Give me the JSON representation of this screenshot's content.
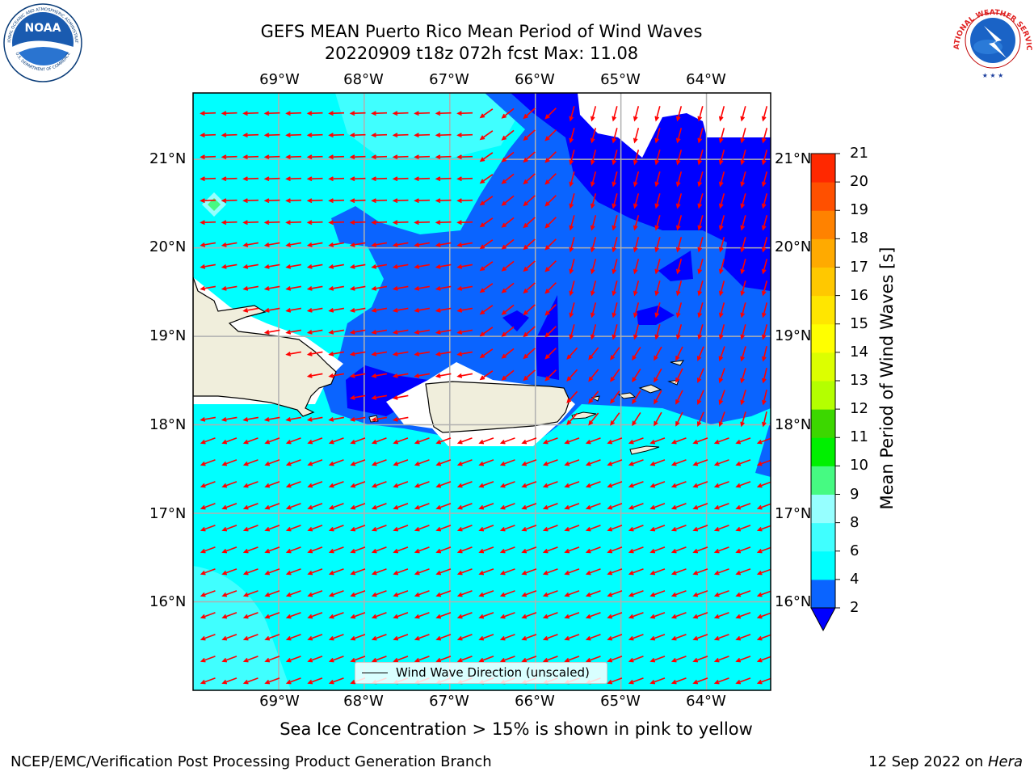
{
  "header": {
    "title_line1": "GEFS MEAN Puerto Rico Mean Period of Wind Waves",
    "title_line2": "20220909 t18z 072h fcst   Max: 11.08"
  },
  "logos": {
    "noaa": {
      "text": "NOAA",
      "ring_top": "NATIONAL OCEANIC AND ATMOSPHERIC ADMINISTRATION",
      "ring_bottom": "U.S. DEPARTMENT OF COMMERCE"
    },
    "nws": {
      "ring_text": "NATIONAL WEATHER SERVICE"
    }
  },
  "map": {
    "lon_labels": [
      "69°W",
      "68°W",
      "67°W",
      "66°W",
      "65°W",
      "64°W"
    ],
    "lat_labels": [
      "21°N",
      "20°N",
      "19°N",
      "18°N",
      "17°N",
      "16°N"
    ],
    "lon_values": [
      -69,
      -68,
      -67,
      -66,
      -65,
      -64
    ],
    "lat_values": [
      21,
      20,
      19,
      18,
      17,
      16
    ],
    "extent": {
      "lon_min": -70,
      "lon_max": -63.25,
      "lat_min": 15.0,
      "lat_max": 21.75
    },
    "legend_label": "Wind Wave Direction (unscaled)",
    "arrow_color": "#ff0000",
    "land_color": "#f0eedc",
    "gridline_color": "#b0b0b0"
  },
  "colorbar": {
    "title": "Mean Period of Wind Waves [s]",
    "levels": [
      2,
      4,
      6,
      8,
      9,
      10,
      11,
      12,
      13,
      14,
      15,
      16,
      17,
      18,
      19,
      20,
      21
    ],
    "tick_labels": [
      "2",
      "4",
      "6",
      "8",
      "9",
      "10",
      "11",
      "12",
      "13",
      "14",
      "15",
      "16",
      "17",
      "18",
      "19",
      "20",
      "21"
    ],
    "colors": [
      "#0a64ff",
      "#00ffff",
      "#40ffff",
      "#96ffff",
      "#46fa82",
      "#00f000",
      "#3cd700",
      "#b4ff00",
      "#dcff00",
      "#ffff00",
      "#ffe600",
      "#ffc800",
      "#ffaa00",
      "#ff8200",
      "#ff5000",
      "#ff2800"
    ],
    "under_color": "#0000ff",
    "period_colors": {
      "2-4": "#0a64ff",
      "4-6": "#00ffff",
      "6-8": "#40ffff",
      "under_2": "#0000ff",
      "peak_9-10": "#46fa82"
    }
  },
  "footnote": "Sea Ice Concentration > 15% is shown in pink to yellow",
  "footer": {
    "left": "NCEP/EMC/Verification Post Processing Product Generation Branch",
    "right_date": "12 Sep 2022 on ",
    "right_host": "Hera"
  }
}
